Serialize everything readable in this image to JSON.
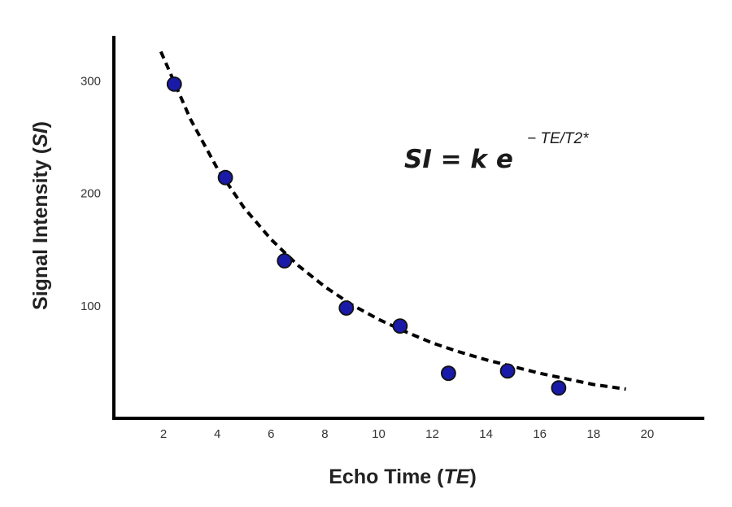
{
  "chart_data": {
    "type": "scatter",
    "x_tick_labels": [
      "2",
      "4",
      "6",
      "8",
      "10",
      "12",
      "14",
      "16",
      "18",
      "20"
    ],
    "y_tick_labels": [
      "100",
      "200",
      "300"
    ],
    "x_ticks": [
      2,
      4,
      6,
      8,
      10,
      12,
      14,
      16,
      18,
      20
    ],
    "y_ticks": [
      100,
      200,
      300
    ],
    "xlim": [
      0,
      22
    ],
    "ylim": [
      0,
      340
    ],
    "xlabel_main": "Echo Time (",
    "xlabel_var": "TE",
    "xlabel_close": ")",
    "ylabel_main": "Signal Intensity (",
    "ylabel_var": "SI",
    "ylabel_close": ")",
    "equation_lhs": "SI = k e",
    "equation_exponent": "− TE/T2*",
    "grid": false,
    "series": [
      {
        "values": [
          {
            "x": 2.4,
            "y": 297
          },
          {
            "x": 4.3,
            "y": 214
          },
          {
            "x": 6.5,
            "y": 140
          },
          {
            "x": 8.8,
            "y": 98
          },
          {
            "x": 10.8,
            "y": 82
          },
          {
            "x": 12.6,
            "y": 40
          },
          {
            "x": 14.8,
            "y": 42
          },
          {
            "x": 16.7,
            "y": 27
          }
        ]
      }
    ],
    "fit_curve": {
      "style": "dashed",
      "x": [
        1.9,
        3,
        4,
        5,
        6,
        7,
        8,
        9,
        10,
        11,
        12,
        13,
        14,
        15,
        16,
        17,
        18,
        19.2
      ],
      "y": [
        326,
        266,
        222,
        187,
        159,
        136,
        117,
        101,
        88,
        77,
        67,
        59,
        52,
        46,
        40,
        35,
        30,
        26
      ]
    },
    "colors": {
      "marker_fill": "#1a1aa8",
      "marker_stroke": "#111111",
      "axis": "#000000",
      "curve": "#000000"
    }
  }
}
